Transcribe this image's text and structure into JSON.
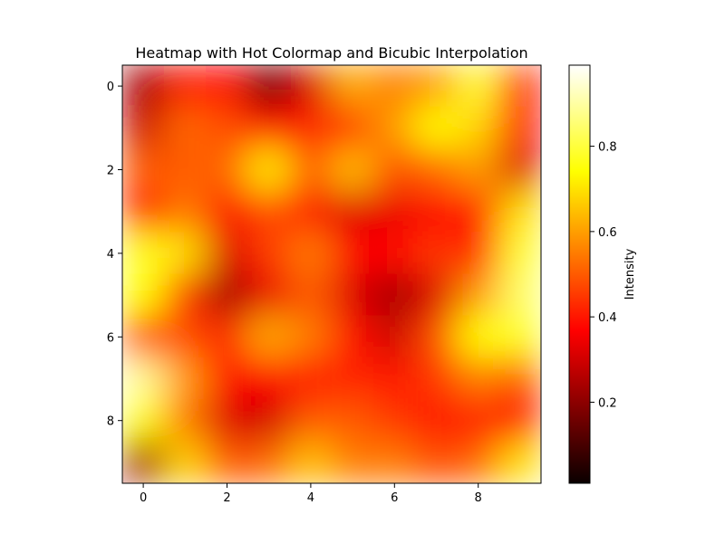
{
  "chart_data": {
    "type": "heatmap",
    "title": "Heatmap with Hot Colormap and Bicubic Interpolation",
    "xlabel": "",
    "ylabel": "",
    "colormap": "hot",
    "interpolation": "bicubic",
    "colorbar": {
      "label": "Intensity",
      "range": [
        0.01,
        0.99
      ],
      "ticks": [
        0.2,
        0.4,
        0.6,
        0.8
      ],
      "tick_labels": [
        "0.2",
        "0.4",
        "0.6",
        "0.8"
      ]
    },
    "xlim": [
      -0.5,
      9.5
    ],
    "ylim": [
      9.5,
      -0.5
    ],
    "x_ticks": [
      0,
      2,
      4,
      6,
      8
    ],
    "y_ticks": [
      0,
      2,
      4,
      6,
      8
    ],
    "x_tick_labels": [
      "0",
      "2",
      "4",
      "6",
      "8"
    ],
    "y_tick_labels": [
      "0",
      "2",
      "4",
      "6",
      "8"
    ],
    "grid": false,
    "values": [
      [
        0.22,
        0.38,
        0.35,
        0.12,
        0.3,
        0.62,
        0.55,
        0.6,
        0.8,
        0.4
      ],
      [
        0.28,
        0.52,
        0.48,
        0.38,
        0.42,
        0.45,
        0.6,
        0.75,
        0.68,
        0.35
      ],
      [
        0.5,
        0.5,
        0.52,
        0.72,
        0.5,
        0.65,
        0.48,
        0.52,
        0.6,
        0.3
      ],
      [
        0.38,
        0.55,
        0.35,
        0.48,
        0.4,
        0.3,
        0.32,
        0.35,
        0.4,
        0.7
      ],
      [
        0.78,
        0.7,
        0.3,
        0.45,
        0.55,
        0.35,
        0.35,
        0.45,
        0.42,
        0.8
      ],
      [
        0.75,
        0.45,
        0.22,
        0.32,
        0.5,
        0.3,
        0.22,
        0.3,
        0.6,
        0.85
      ],
      [
        0.48,
        0.48,
        0.42,
        0.62,
        0.55,
        0.38,
        0.28,
        0.48,
        0.75,
        0.78
      ],
      [
        0.9,
        0.6,
        0.38,
        0.35,
        0.4,
        0.42,
        0.4,
        0.45,
        0.55,
        0.5
      ],
      [
        0.75,
        0.55,
        0.3,
        0.28,
        0.5,
        0.5,
        0.45,
        0.4,
        0.4,
        0.38
      ],
      [
        0.22,
        0.68,
        0.5,
        0.52,
        0.65,
        0.55,
        0.55,
        0.48,
        0.52,
        0.7
      ]
    ]
  }
}
